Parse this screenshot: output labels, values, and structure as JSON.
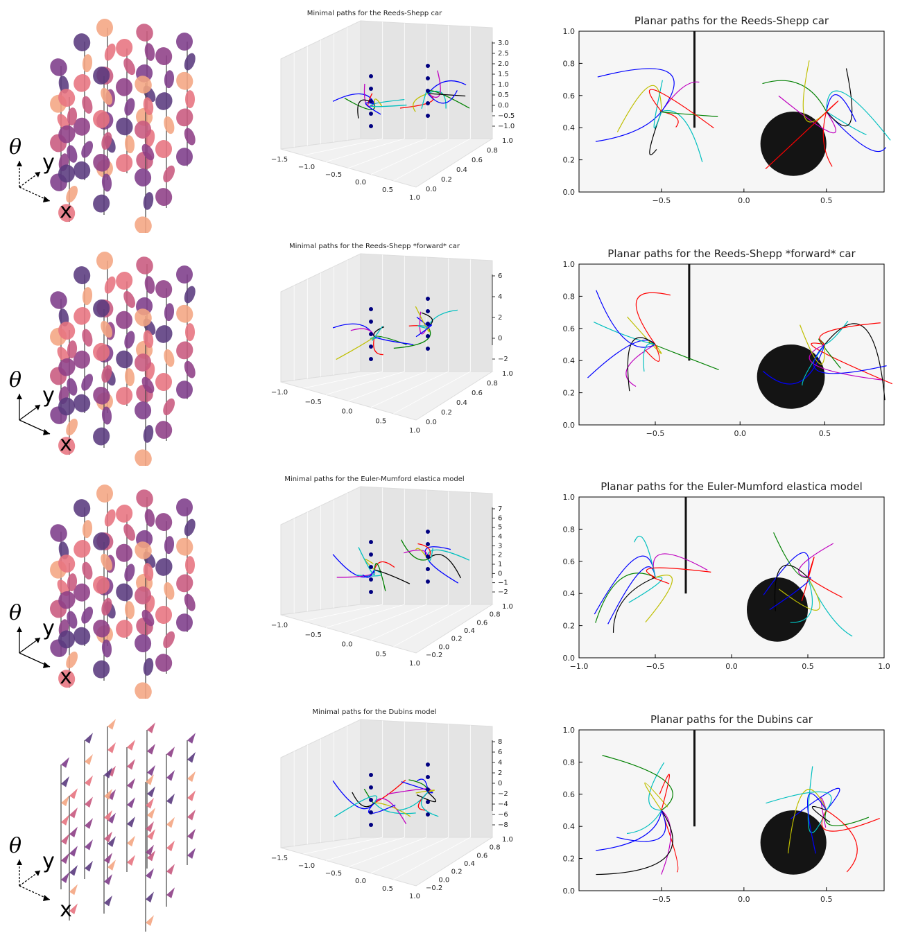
{
  "rows": [
    {
      "id": "reeds-shepp",
      "left": {
        "axis_labels": {
          "theta": "θ",
          "y": "y",
          "x": "x"
        },
        "glyph": "ellipse",
        "colors": [
          "#7d3c8a",
          "#5a3a7e",
          "#f4a582",
          "#e7737f",
          "#c8597e",
          "#8e3f86"
        ]
      },
      "mid": {
        "title": "Minimal paths for the Reeds-Shepp car",
        "xticks": [
          "−1.5",
          "−1.0",
          "−0.5",
          "0.0",
          "0.5",
          "1.0"
        ],
        "yticks": [
          "0.0",
          "0.2",
          "0.4",
          "0.6",
          "0.8",
          "1.0"
        ],
        "zticks": [
          "3.0",
          "2.5",
          "2.0",
          "1.5",
          "1.0",
          "0.5",
          "0.0",
          "−0.5",
          "−1.0"
        ]
      },
      "right": {
        "title": "Planar paths for the Reeds-Shepp car",
        "xticks": [
          "−0.5",
          "0.0",
          "0.5"
        ],
        "yticks": [
          "0.0",
          "0.2",
          "0.4",
          "0.6",
          "0.8",
          "1.0"
        ]
      }
    },
    {
      "id": "reeds-shepp-forward",
      "left": {
        "axis_labels": {
          "theta": "θ",
          "y": "y",
          "x": "x"
        },
        "glyph": "ellipse",
        "colors": [
          "#7d3c8a",
          "#5a3a7e",
          "#f4a582",
          "#e7737f",
          "#c8597e",
          "#8e3f86"
        ]
      },
      "mid": {
        "title": "Minimal paths for the Reeds-Shepp *forward* car",
        "xticks": [
          "−1.0",
          "−0.5",
          "0.0",
          "0.5",
          "1.0"
        ],
        "yticks": [
          "0.0",
          "0.2",
          "0.4",
          "0.6",
          "0.8",
          "1.0"
        ],
        "zticks": [
          "6",
          "4",
          "2",
          "0",
          "−2"
        ]
      },
      "right": {
        "title": "Planar paths for the Reeds-Shepp *forward* car",
        "xticks": [
          "−0.5",
          "0.0",
          "0.5"
        ],
        "yticks": [
          "0.0",
          "0.2",
          "0.4",
          "0.6",
          "0.8",
          "1.0"
        ]
      }
    },
    {
      "id": "euler-mumford",
      "left": {
        "axis_labels": {
          "theta": "θ",
          "y": "y",
          "x": "x"
        },
        "glyph": "ellipse",
        "colors": [
          "#7d3c8a",
          "#5a3a7e",
          "#f4a582",
          "#e7737f",
          "#c8597e",
          "#8e3f86"
        ]
      },
      "mid": {
        "title": "Minimal paths for the Euler-Mumford elastica model",
        "xticks": [
          "−1.0",
          "−0.5",
          "0.0",
          "0.5",
          "1.0"
        ],
        "yticks": [
          "−0.2",
          "0.0",
          "0.2",
          "0.4",
          "0.6",
          "0.8",
          "1.0"
        ],
        "zticks": [
          "7",
          "6",
          "5",
          "4",
          "3",
          "2",
          "1",
          "0",
          "−1",
          "−2"
        ]
      },
      "right": {
        "title": "Planar paths for the Euler-Mumford elastica model",
        "xticks": [
          "−1.0",
          "−0.5",
          "0.0",
          "0.5",
          "1.0"
        ],
        "yticks": [
          "0.0",
          "0.2",
          "0.4",
          "0.6",
          "0.8",
          "1.0"
        ]
      }
    },
    {
      "id": "dubins",
      "left": {
        "axis_labels": {
          "theta": "θ",
          "y": "y",
          "x": "x"
        },
        "glyph": "triangle",
        "colors": [
          "#7d3c8a",
          "#5a3a7e",
          "#f4a582",
          "#e7737f",
          "#c8597e",
          "#8e3f86"
        ]
      },
      "mid": {
        "title": "Minimal paths for the Dubins model",
        "xticks": [
          "−1.5",
          "−1.0",
          "−0.5",
          "0.0",
          "0.5",
          "1.0"
        ],
        "yticks": [
          "−0.2",
          "0.0",
          "0.2",
          "0.4",
          "0.6",
          "0.8",
          "1.0"
        ],
        "zticks": [
          "8",
          "6",
          "4",
          "2",
          "0",
          "−2",
          "−4",
          "−6",
          "−8"
        ]
      },
      "right": {
        "title": "Planar paths for the Dubins car",
        "xticks": [
          "−0.5",
          "0.0",
          "0.5"
        ],
        "yticks": [
          "0.0",
          "0.2",
          "0.4",
          "0.6",
          "0.8",
          "1.0"
        ]
      }
    }
  ],
  "chart_data": [
    {
      "type": "line",
      "title": "Planar paths for the Reeds-Shepp car",
      "xlim": [
        -1.0,
        0.85
      ],
      "ylim": [
        0,
        1.0
      ],
      "obstacles": {
        "wall_x": -0.3,
        "wall_y_from": 0.4,
        "wall_y_to": 1.0,
        "disk_center": [
          0.3,
          0.3
        ],
        "disk_radius": 0.2
      },
      "series": []
    },
    {
      "type": "line",
      "title": "Planar paths for the Reeds-Shepp *forward* car",
      "xlim": [
        -0.95,
        0.85
      ],
      "ylim": [
        0,
        1.0
      ],
      "obstacles": {
        "wall_x": -0.3,
        "wall_y_from": 0.4,
        "wall_y_to": 1.0,
        "disk_center": [
          0.3,
          0.3
        ],
        "disk_radius": 0.2
      },
      "series": []
    },
    {
      "type": "line",
      "title": "Planar paths for the Euler-Mumford elastica model",
      "xlim": [
        -1.0,
        1.0
      ],
      "ylim": [
        0,
        1.0
      ],
      "obstacles": {
        "wall_x": -0.3,
        "wall_y_from": 0.4,
        "wall_y_to": 1.0,
        "disk_center": [
          0.3,
          0.3
        ],
        "disk_radius": 0.2
      },
      "series": []
    },
    {
      "type": "line",
      "title": "Planar paths for the Dubins car",
      "xlim": [
        -1.0,
        0.85
      ],
      "ylim": [
        0,
        1.0
      ],
      "obstacles": {
        "wall_x": -0.3,
        "wall_y_from": 0.4,
        "wall_y_to": 1.0,
        "disk_center": [
          0.3,
          0.3
        ],
        "disk_radius": 0.2
      },
      "series": []
    }
  ],
  "palette": [
    "#0000ff",
    "#00bfbf",
    "#ff0000",
    "#008000",
    "#bf00bf",
    "#bfbf00",
    "#000000"
  ]
}
